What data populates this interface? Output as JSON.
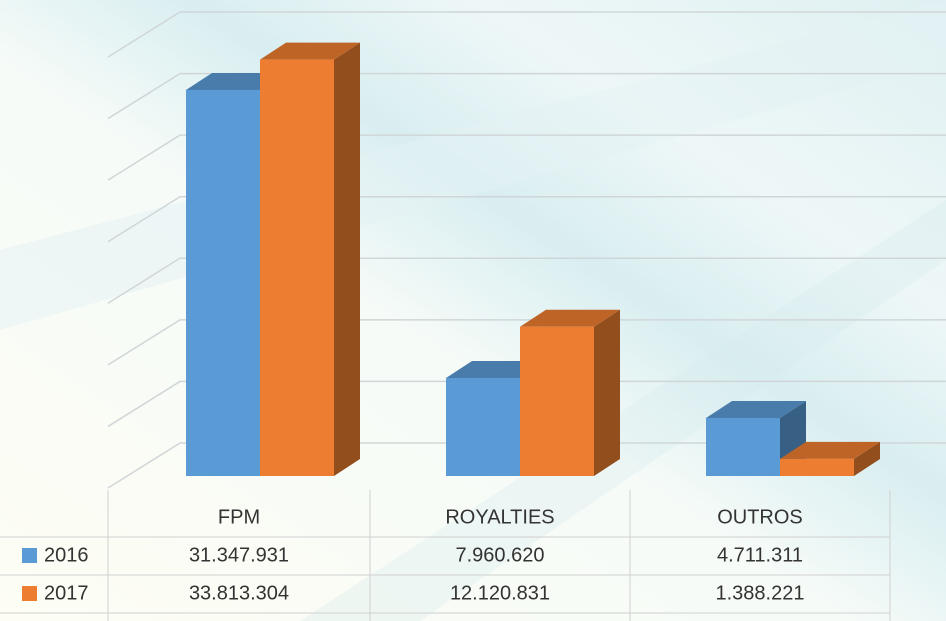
{
  "chart_data": {
    "type": "bar3d",
    "categories": [
      "FPM",
      "ROYALTIES",
      "OUTROS"
    ],
    "series": [
      {
        "name": "2016",
        "color": "#5b9bd5",
        "values": [
          31347931,
          7960620,
          4711311
        ],
        "value_labels": [
          "31.347.931",
          "7.960.620",
          "4.711.311"
        ]
      },
      {
        "name": "2017",
        "color": "#ed7d31",
        "values": [
          33813304,
          12120831,
          1388221
        ],
        "value_labels": [
          "33.813.304",
          "12.120.831",
          "1.388.221"
        ]
      }
    ],
    "ylim": [
      0,
      35000000
    ],
    "yticks": [
      0,
      5000000,
      10000000,
      15000000,
      20000000,
      25000000,
      30000000,
      35000000
    ],
    "grid": true,
    "legend": "table"
  }
}
